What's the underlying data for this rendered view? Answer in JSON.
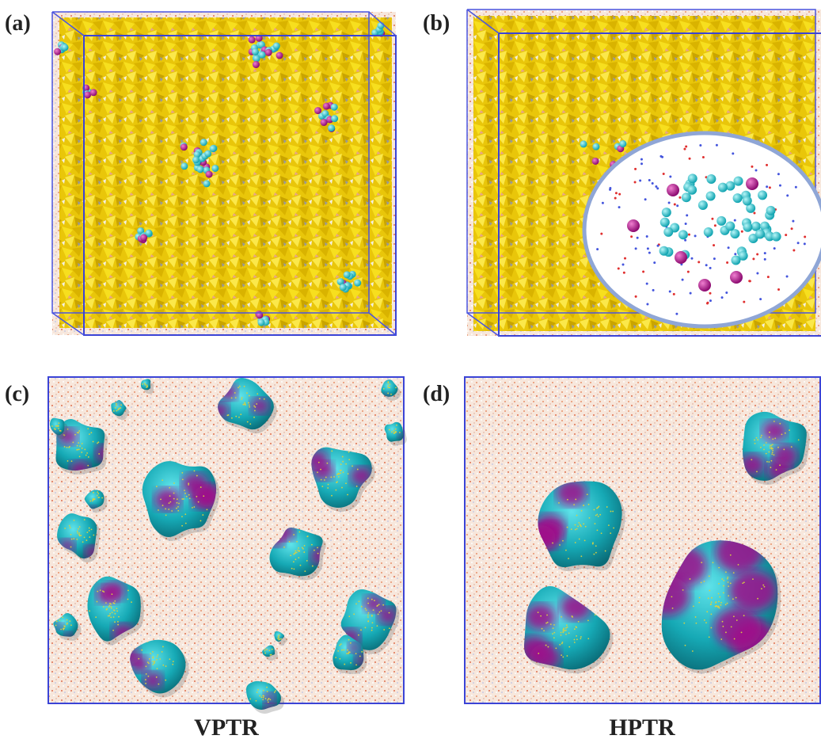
{
  "panels": [
    {
      "label": "(a)"
    },
    {
      "label": "(b)"
    },
    {
      "label": "(c)",
      "caption": "VPTR"
    },
    {
      "label": "(d)",
      "caption": "HPTR"
    }
  ]
}
